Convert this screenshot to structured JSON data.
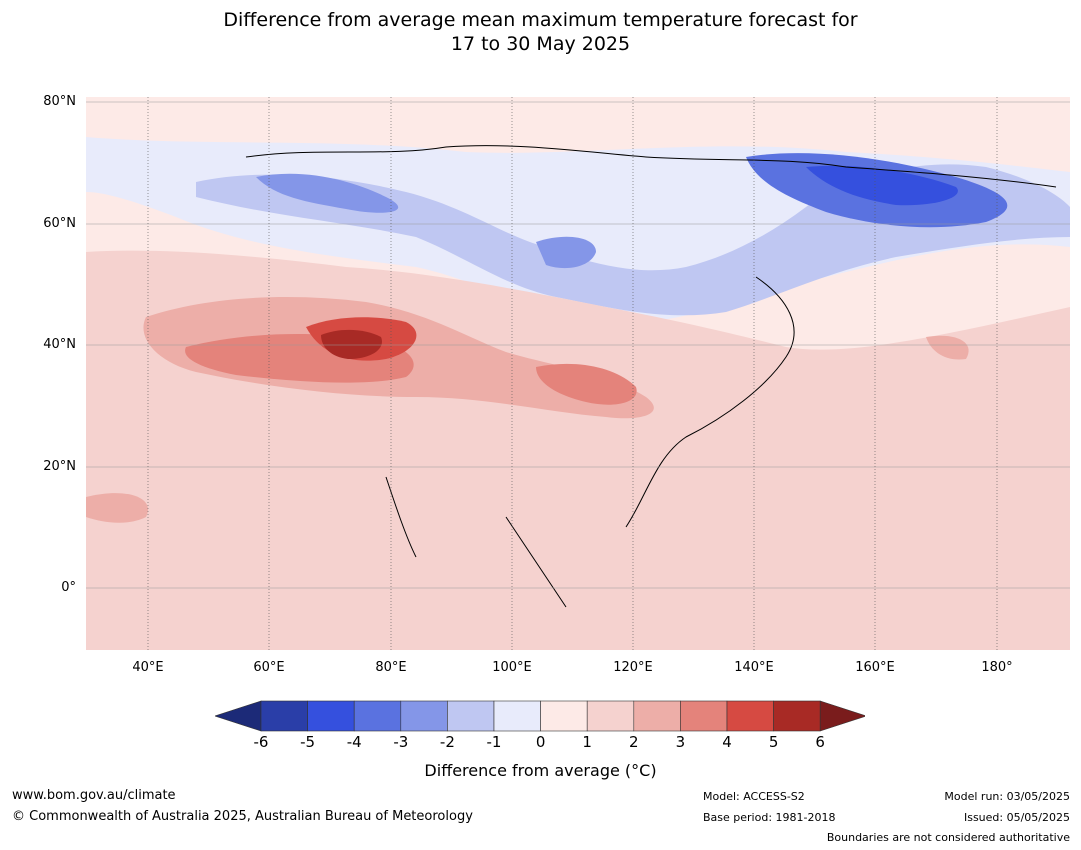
{
  "title_line1": "Difference from average mean maximum temperature forecast for",
  "title_line2": "17 to 30 May 2025",
  "lat_labels": [
    "80°N",
    "60°N",
    "40°N",
    "20°N",
    "0°"
  ],
  "lon_labels": [
    "40°E",
    "60°E",
    "80°E",
    "100°E",
    "120°E",
    "140°E",
    "160°E",
    "180°"
  ],
  "colorbar": {
    "ticks": [
      "-6",
      "-5",
      "-4",
      "-3",
      "-2",
      "-1",
      "0",
      "1",
      "2",
      "3",
      "4",
      "5",
      "6"
    ],
    "colors": [
      "#2a3ea8",
      "#3550de",
      "#5a72e0",
      "#8496e8",
      "#bfc7f2",
      "#e8ebfb",
      "#fdeae7",
      "#f5d2cf",
      "#edaea8",
      "#e4837b",
      "#d64a42",
      "#a82a25"
    ],
    "under_color": "#1c2a78",
    "over_color": "#7a1c1c",
    "label": "Difference from average (°C)"
  },
  "footer": {
    "website": "www.bom.gov.au/climate",
    "copyright": "© Commonwealth of Australia 2025, Australian Bureau of Meteorology",
    "model": "Model: ACCESS-S2",
    "base_period": "Base period: 1981-2018",
    "model_run": "Model run: 03/05/2025",
    "issued": "Issued: 05/05/2025",
    "boundaries": "Boundaries are not considered authoritative"
  }
}
